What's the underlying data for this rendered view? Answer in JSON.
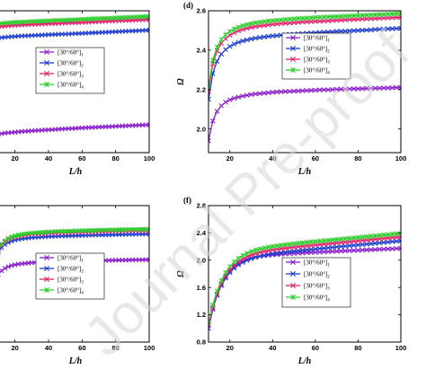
{
  "watermark": "Journal Pre-proof",
  "legend_labels": [
    "[30°/60°]",
    "[30°/60°]",
    "[30°/60°]",
    "[30°/60°]"
  ],
  "legend_subscripts": [
    "1",
    "2",
    "3",
    "4"
  ],
  "series_colors": [
    "#8B1FCF",
    "#1E3FCF",
    "#E6206B",
    "#2FCF2F"
  ],
  "chart_data": [
    {
      "type": "line",
      "panel": "",
      "xlabel": "L/h",
      "ylabel": "",
      "xlim": [
        10,
        100
      ],
      "ylim": [
        1.74,
        2.64
      ],
      "xticks": [
        20,
        40,
        60,
        80,
        100
      ],
      "yticks": [],
      "x": [
        10,
        12,
        14,
        16,
        18,
        20,
        22,
        24,
        26,
        28,
        30,
        32,
        34,
        36,
        38,
        40,
        42,
        44,
        46,
        48,
        50,
        52,
        54,
        56,
        58,
        60,
        62,
        64,
        66,
        68,
        70,
        72,
        74,
        76,
        78,
        80,
        82,
        84,
        86,
        88,
        90,
        92,
        94,
        96,
        98,
        100
      ],
      "series": [
        {
          "subscript": "1",
          "values": [
            1.857,
            1.861,
            1.864,
            1.866,
            1.868,
            1.87,
            1.872,
            1.874,
            1.875,
            1.877,
            1.878,
            1.88,
            1.881,
            1.882,
            1.884,
            1.885,
            1.886,
            1.887,
            1.889,
            1.89,
            1.891,
            1.892,
            1.893,
            1.894,
            1.896,
            1.897,
            1.898,
            1.899,
            1.9,
            1.901,
            1.902,
            1.903,
            1.904,
            1.905,
            1.906,
            1.907,
            1.908,
            1.909,
            1.91,
            1.911,
            1.912,
            1.913,
            1.914,
            1.915,
            1.916,
            1.917
          ]
        },
        {
          "subscript": "2",
          "values": [
            2.467,
            2.47,
            2.472,
            2.474,
            2.476,
            2.477,
            2.479,
            2.48,
            2.481,
            2.482,
            2.483,
            2.484,
            2.485,
            2.486,
            2.487,
            2.488,
            2.489,
            2.49,
            2.491,
            2.492,
            2.492,
            2.493,
            2.494,
            2.495,
            2.496,
            2.497,
            2.498,
            2.499,
            2.5,
            2.501,
            2.502,
            2.503,
            2.504,
            2.505,
            2.506,
            2.507,
            2.508,
            2.509,
            2.51,
            2.511,
            2.512,
            2.513,
            2.514,
            2.515,
            2.516,
            2.517
          ]
        },
        {
          "subscript": "3",
          "values": [
            2.538,
            2.541,
            2.543,
            2.545,
            2.546,
            2.548,
            2.549,
            2.55,
            2.551,
            2.552,
            2.553,
            2.554,
            2.555,
            2.556,
            2.557,
            2.558,
            2.558,
            2.559,
            2.56,
            2.561,
            2.562,
            2.563,
            2.564,
            2.565,
            2.565,
            2.566,
            2.567,
            2.568,
            2.569,
            2.57,
            2.571,
            2.572,
            2.573,
            2.574,
            2.575,
            2.576,
            2.577,
            2.578,
            2.578,
            2.579,
            2.58,
            2.581,
            2.582,
            2.583,
            2.584,
            2.585
          ]
        },
        {
          "subscript": "4",
          "values": [
            2.557,
            2.56,
            2.562,
            2.564,
            2.566,
            2.567,
            2.568,
            2.569,
            2.57,
            2.571,
            2.572,
            2.573,
            2.574,
            2.575,
            2.576,
            2.577,
            2.578,
            2.579,
            2.58,
            2.581,
            2.581,
            2.582,
            2.583,
            2.584,
            2.585,
            2.586,
            2.587,
            2.588,
            2.589,
            2.59,
            2.591,
            2.592,
            2.593,
            2.593,
            2.594,
            2.595,
            2.596,
            2.597,
            2.598,
            2.599,
            2.6,
            2.601,
            2.602,
            2.603,
            2.604,
            2.605
          ]
        }
      ]
    },
    {
      "type": "line",
      "panel": "(d)",
      "xlabel": "L/h",
      "ylabel": "Ω",
      "xlim": [
        10,
        100
      ],
      "ylim": [
        1.88,
        2.6
      ],
      "xticks": [
        20,
        40,
        60,
        80,
        100
      ],
      "yticks": [
        2.0,
        2.2,
        2.4,
        2.6
      ],
      "x": [
        10,
        12,
        14,
        16,
        18,
        20,
        22,
        24,
        26,
        28,
        30,
        32,
        34,
        36,
        38,
        40,
        42,
        44,
        46,
        48,
        50,
        52,
        54,
        56,
        58,
        60,
        62,
        64,
        66,
        68,
        70,
        72,
        74,
        76,
        78,
        80,
        82,
        84,
        86,
        88,
        90,
        92,
        94,
        96,
        98,
        100
      ],
      "series": [
        {
          "subscript": "1",
          "values": [
            1.94,
            2.041,
            2.09,
            2.118,
            2.136,
            2.148,
            2.156,
            2.162,
            2.167,
            2.171,
            2.175,
            2.178,
            2.18,
            2.182,
            2.184,
            2.186,
            2.188,
            2.189,
            2.19,
            2.191,
            2.192,
            2.193,
            2.194,
            2.195,
            2.196,
            2.197,
            2.198,
            2.199,
            2.199,
            2.2,
            2.201,
            2.202,
            2.202,
            2.203,
            2.204,
            2.204,
            2.205,
            2.206,
            2.206,
            2.207,
            2.207,
            2.208,
            2.208,
            2.209,
            2.21,
            2.21
          ]
        },
        {
          "subscript": "2",
          "values": [
            2.15,
            2.282,
            2.344,
            2.38,
            2.403,
            2.419,
            2.431,
            2.44,
            2.447,
            2.452,
            2.457,
            2.461,
            2.464,
            2.467,
            2.47,
            2.472,
            2.474,
            2.476,
            2.478,
            2.48,
            2.481,
            2.483,
            2.484,
            2.486,
            2.487,
            2.488,
            2.49,
            2.491,
            2.492,
            2.493,
            2.495,
            2.496,
            2.497,
            2.498,
            2.499,
            2.5,
            2.501,
            2.502,
            2.503,
            2.505,
            2.506,
            2.507,
            2.508,
            2.509,
            2.51,
            2.511
          ]
        },
        {
          "subscript": "3",
          "values": [
            2.19,
            2.331,
            2.397,
            2.435,
            2.459,
            2.476,
            2.489,
            2.498,
            2.505,
            2.511,
            2.516,
            2.52,
            2.523,
            2.526,
            2.529,
            2.531,
            2.533,
            2.535,
            2.537,
            2.538,
            2.54,
            2.541,
            2.543,
            2.544,
            2.545,
            2.546,
            2.547,
            2.548,
            2.549,
            2.551,
            2.552,
            2.553,
            2.554,
            2.555,
            2.556,
            2.557,
            2.558,
            2.559,
            2.56,
            2.561,
            2.562,
            2.563,
            2.564,
            2.565,
            2.566,
            2.567
          ]
        },
        {
          "subscript": "4",
          "values": [
            2.21,
            2.35,
            2.416,
            2.454,
            2.479,
            2.496,
            2.508,
            2.517,
            2.524,
            2.53,
            2.535,
            2.539,
            2.542,
            2.545,
            2.548,
            2.55,
            2.552,
            2.554,
            2.556,
            2.558,
            2.559,
            2.561,
            2.562,
            2.563,
            2.564,
            2.566,
            2.567,
            2.568,
            2.569,
            2.57,
            2.571,
            2.572,
            2.573,
            2.574,
            2.575,
            2.576,
            2.577,
            2.578,
            2.579,
            2.58,
            2.581,
            2.582,
            2.583,
            2.584,
            2.585,
            2.586
          ]
        }
      ]
    },
    {
      "type": "line",
      "panel": "",
      "xlabel": "L/h",
      "ylabel": "",
      "xlim": [
        10,
        100
      ],
      "ylim": [
        1.5,
        2.85
      ],
      "xticks": [
        20,
        40,
        60,
        80,
        100
      ],
      "yticks": [],
      "x": [
        10,
        12,
        14,
        16,
        18,
        20,
        22,
        24,
        26,
        28,
        30,
        32,
        34,
        36,
        38,
        40,
        42,
        44,
        46,
        48,
        50,
        52,
        54,
        56,
        58,
        60,
        62,
        64,
        66,
        68,
        70,
        72,
        74,
        76,
        78,
        80,
        82,
        84,
        86,
        88,
        90,
        92,
        94,
        96,
        98,
        100
      ],
      "series": [
        {
          "subscript": "1",
          "values": [
            2.17,
            2.206,
            2.23,
            2.246,
            2.257,
            2.265,
            2.271,
            2.275,
            2.279,
            2.282,
            2.285,
            2.287,
            2.289,
            2.29,
            2.292,
            2.293,
            2.294,
            2.296,
            2.297,
            2.298,
            2.299,
            2.299,
            2.3,
            2.301,
            2.302,
            2.303,
            2.304,
            2.304,
            2.305,
            2.306,
            2.306,
            2.307,
            2.308,
            2.308,
            2.309,
            2.31,
            2.31,
            2.311,
            2.311,
            2.312,
            2.313,
            2.313,
            2.314,
            2.314,
            2.315,
            2.315
          ]
        },
        {
          "subscript": "2",
          "values": [
            2.39,
            2.435,
            2.465,
            2.485,
            2.499,
            2.509,
            2.516,
            2.522,
            2.526,
            2.53,
            2.533,
            2.536,
            2.538,
            2.54,
            2.542,
            2.544,
            2.545,
            2.547,
            2.548,
            2.549,
            2.55,
            2.551,
            2.552,
            2.553,
            2.554,
            2.555,
            2.556,
            2.557,
            2.558,
            2.559,
            2.559,
            2.56,
            2.561,
            2.562,
            2.562,
            2.563,
            2.564,
            2.564,
            2.565,
            2.566,
            2.566,
            2.567,
            2.568,
            2.568,
            2.569,
            2.569
          ]
        },
        {
          "subscript": "3",
          "values": [
            2.41,
            2.459,
            2.492,
            2.514,
            2.529,
            2.539,
            2.547,
            2.553,
            2.558,
            2.562,
            2.566,
            2.569,
            2.571,
            2.573,
            2.575,
            2.577,
            2.579,
            2.58,
            2.582,
            2.583,
            2.584,
            2.585,
            2.586,
            2.587,
            2.588,
            2.589,
            2.59,
            2.591,
            2.592,
            2.593,
            2.594,
            2.595,
            2.595,
            2.596,
            2.597,
            2.598,
            2.598,
            2.599,
            2.6,
            2.6,
            2.601,
            2.602,
            2.602,
            2.603,
            2.604,
            2.604
          ]
        },
        {
          "subscript": "4",
          "values": [
            2.42,
            2.47,
            2.503,
            2.525,
            2.541,
            2.551,
            2.559,
            2.566,
            2.571,
            2.575,
            2.578,
            2.581,
            2.584,
            2.586,
            2.588,
            2.59,
            2.592,
            2.593,
            2.595,
            2.596,
            2.597,
            2.598,
            2.599,
            2.6,
            2.601,
            2.602,
            2.603,
            2.604,
            2.605,
            2.606,
            2.607,
            2.608,
            2.609,
            2.61,
            2.61,
            2.611,
            2.612,
            2.613,
            2.613,
            2.614,
            2.615,
            2.615,
            2.616,
            2.617,
            2.617,
            2.618
          ]
        }
      ]
    },
    {
      "type": "line",
      "panel": "(f)",
      "xlabel": "L/h",
      "ylabel": "Ω",
      "xlim": [
        10,
        100
      ],
      "ylim": [
        0.8,
        2.8
      ],
      "xticks": [
        20,
        40,
        60,
        80,
        100
      ],
      "yticks": [
        0.8,
        1.2,
        1.6,
        2.0,
        2.4,
        2.8
      ],
      "x": [
        10,
        12,
        14,
        16,
        18,
        20,
        22,
        24,
        26,
        28,
        30,
        32,
        34,
        36,
        38,
        40,
        42,
        44,
        46,
        48,
        50,
        52,
        54,
        56,
        58,
        60,
        62,
        64,
        66,
        68,
        70,
        72,
        74,
        76,
        78,
        80,
        82,
        84,
        86,
        88,
        90,
        92,
        94,
        96,
        98,
        100
      ],
      "series": [
        {
          "subscript": "1",
          "values": [
            1.0,
            1.28,
            1.488,
            1.642,
            1.756,
            1.841,
            1.904,
            1.95,
            1.985,
            2.011,
            2.031,
            2.046,
            2.057,
            2.066,
            2.073,
            2.079,
            2.084,
            2.089,
            2.093,
            2.097,
            2.1,
            2.104,
            2.107,
            2.11,
            2.113,
            2.116,
            2.119,
            2.122,
            2.125,
            2.128,
            2.131,
            2.134,
            2.136,
            2.139,
            2.142,
            2.145,
            2.148,
            2.151,
            2.153,
            2.156,
            2.159,
            2.162,
            2.165,
            2.167,
            2.17,
            2.173
          ]
        },
        {
          "subscript": "2",
          "values": [
            1.05,
            1.299,
            1.487,
            1.629,
            1.737,
            1.819,
            1.882,
            1.931,
            1.969,
            1.999,
            2.023,
            2.043,
            2.059,
            2.072,
            2.084,
            2.094,
            2.103,
            2.111,
            2.119,
            2.126,
            2.133,
            2.139,
            2.146,
            2.152,
            2.158,
            2.164,
            2.17,
            2.176,
            2.182,
            2.188,
            2.194,
            2.2,
            2.206,
            2.212,
            2.218,
            2.224,
            2.23,
            2.236,
            2.242,
            2.248,
            2.254,
            2.26,
            2.266,
            2.272,
            2.278,
            2.284
          ]
        },
        {
          "subscript": "3",
          "values": [
            1.05,
            1.309,
            1.506,
            1.656,
            1.771,
            1.859,
            1.926,
            1.978,
            2.019,
            2.051,
            2.076,
            2.097,
            2.114,
            2.128,
            2.14,
            2.151,
            2.16,
            2.169,
            2.177,
            2.184,
            2.191,
            2.198,
            2.204,
            2.211,
            2.217,
            2.223,
            2.229,
            2.235,
            2.241,
            2.247,
            2.253,
            2.259,
            2.265,
            2.271,
            2.277,
            2.283,
            2.289,
            2.295,
            2.301,
            2.307,
            2.313,
            2.319,
            2.325,
            2.331,
            2.337,
            2.343
          ]
        },
        {
          "subscript": "4",
          "values": [
            1.07,
            1.344,
            1.548,
            1.702,
            1.818,
            1.907,
            1.975,
            2.028,
            2.069,
            2.101,
            2.127,
            2.148,
            2.165,
            2.179,
            2.191,
            2.202,
            2.211,
            2.22,
            2.228,
            2.235,
            2.242,
            2.249,
            2.255,
            2.262,
            2.268,
            2.274,
            2.28,
            2.286,
            2.292,
            2.298,
            2.304,
            2.31,
            2.316,
            2.322,
            2.328,
            2.334,
            2.34,
            2.346,
            2.352,
            2.358,
            2.364,
            2.37,
            2.376,
            2.382,
            2.388,
            2.394
          ]
        }
      ]
    }
  ]
}
